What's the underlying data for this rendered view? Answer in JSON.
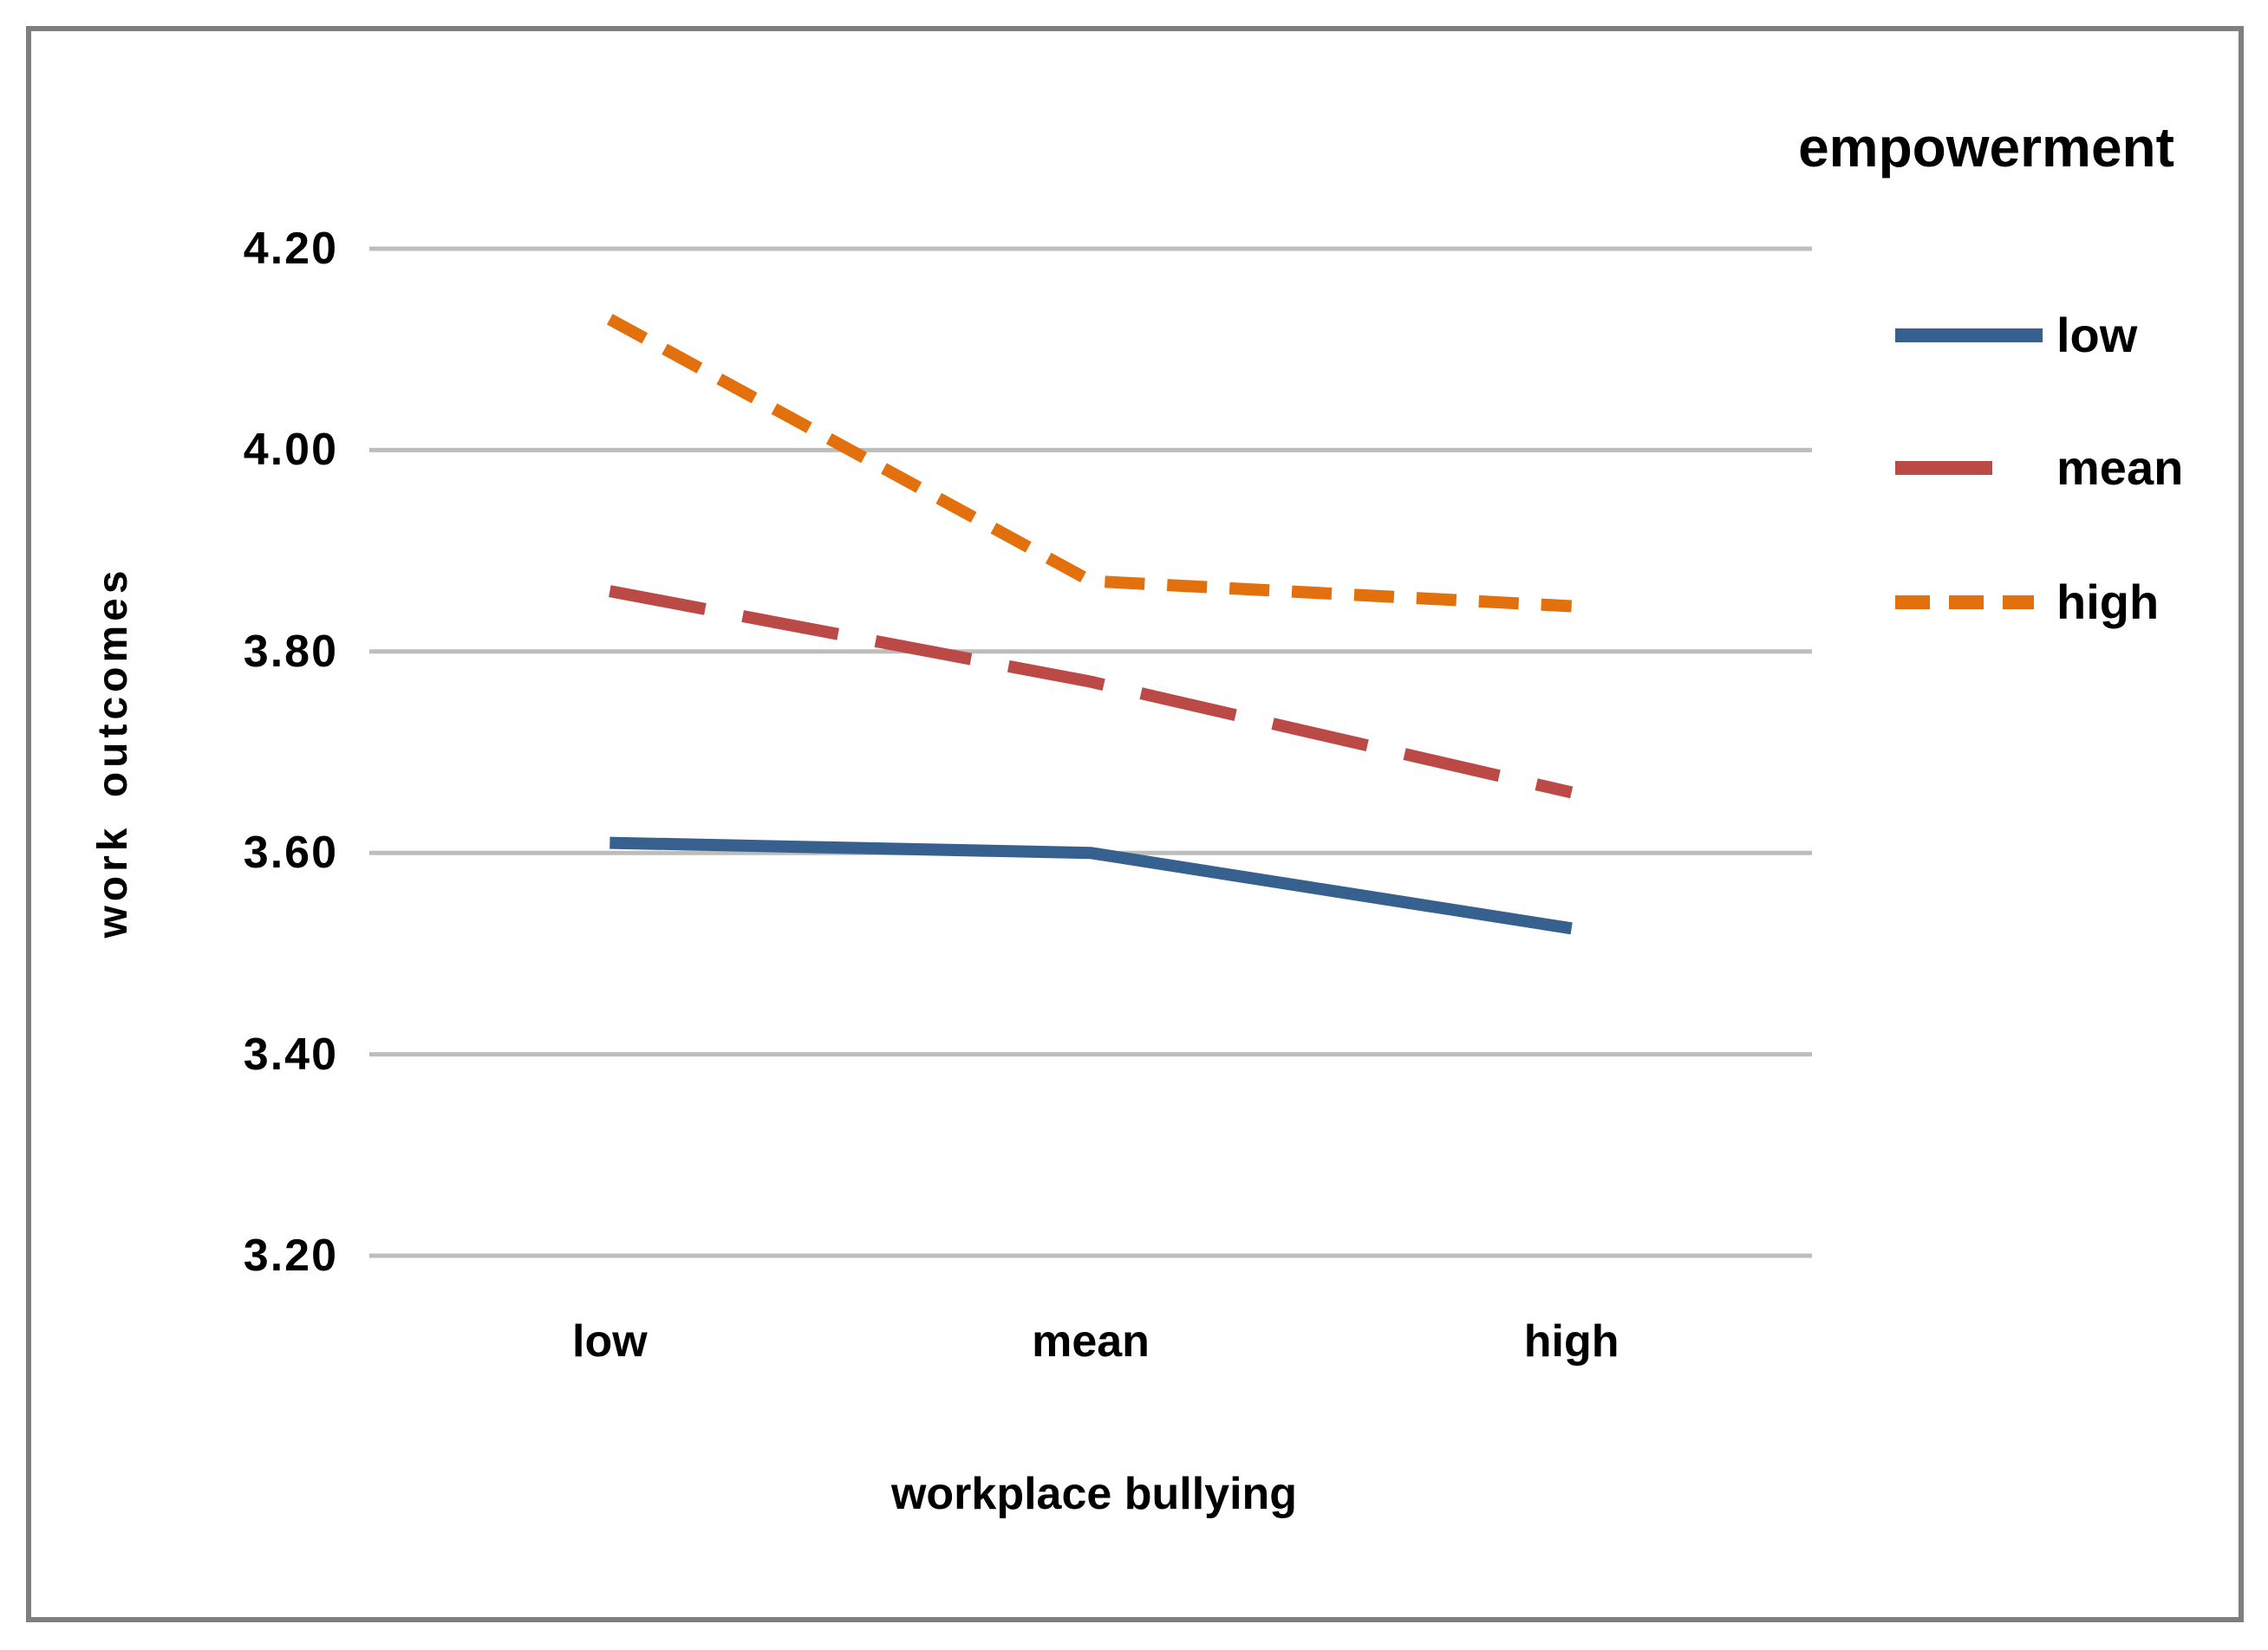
{
  "figure": {
    "background": "#ffffff",
    "border_color": "#7f7f7f"
  },
  "chart_data": {
    "type": "line",
    "title": "",
    "xlabel": "workplace bullying",
    "ylabel": "work outcomes",
    "categories": [
      "low",
      "mean",
      "high"
    ],
    "series": [
      {
        "name": "low",
        "color": "#36618F",
        "dash": "solid",
        "values": [
          3.61,
          3.6,
          3.525
        ]
      },
      {
        "name": "mean",
        "color": "#BB4A47",
        "dash": "long-dash",
        "values": [
          3.86,
          3.77,
          3.66
        ]
      },
      {
        "name": "high",
        "color": "#E2700D",
        "dash": "short-dash",
        "values": [
          4.13,
          3.87,
          3.845
        ]
      }
    ],
    "ylim": [
      3.2,
      4.2
    ],
    "ytick_step": 0.2,
    "ytick_labels": [
      "4.20",
      "4.00",
      "3.80",
      "3.60",
      "3.40",
      "3.20"
    ],
    "grid": "horizontal",
    "gridline_color": "#BDBDBD",
    "legend": {
      "title": "empowerment",
      "position": "right",
      "entries": [
        "low",
        "mean",
        "high"
      ]
    }
  }
}
